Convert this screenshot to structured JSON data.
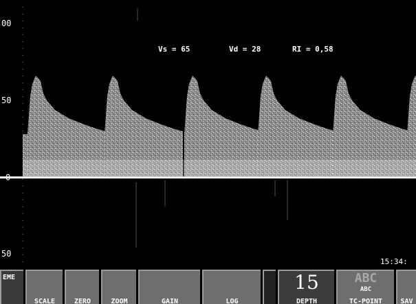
{
  "scale": {
    "labels": [
      "00",
      "50",
      "0",
      "50"
    ]
  },
  "measurements": {
    "vs": "Vs = 65",
    "vd": "Vd = 28",
    "ri": "RI = 0,58"
  },
  "clock": "15:34:",
  "softkeys": {
    "mode": "EME",
    "scale": "SCALE",
    "zero": "ZERO",
    "zoom": "ZOOM",
    "gain": "GAIN",
    "log": "LOG",
    "depth_value": "15",
    "depth": "DEPTH",
    "abc_big": "ABC",
    "abc_small": "ABC",
    "tc_point": "TC-POINT",
    "save": "SAV"
  }
}
